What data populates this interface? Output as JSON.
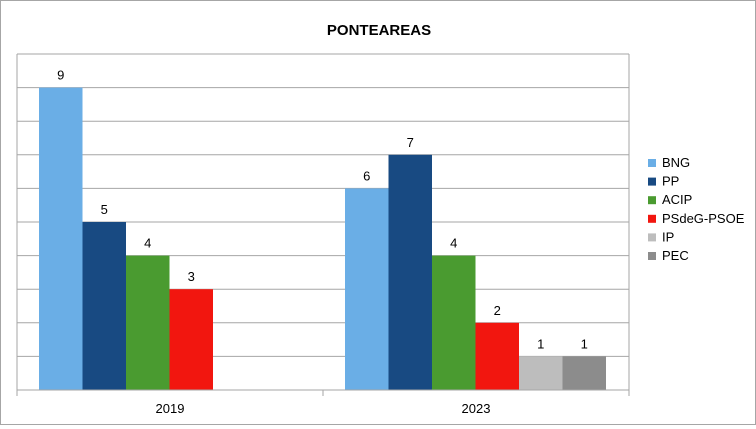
{
  "chart_data": {
    "type": "bar",
    "title": "PONTEAREAS",
    "categories": [
      "2019",
      "2023"
    ],
    "series": [
      {
        "name": "BNG",
        "color": "#6aaee6",
        "values": [
          9,
          6
        ]
      },
      {
        "name": "PP",
        "color": "#184a82",
        "values": [
          5,
          7
        ]
      },
      {
        "name": "ACIP",
        "color": "#4a9b30",
        "values": [
          4,
          4
        ]
      },
      {
        "name": "PSdeG-PSOE",
        "color": "#f2160f",
        "values": [
          3,
          2
        ]
      },
      {
        "name": "IP",
        "color": "#bdbdbd",
        "values": [
          null,
          1
        ]
      },
      {
        "name": "PEC",
        "color": "#8c8c8c",
        "values": [
          null,
          1
        ]
      }
    ],
    "ylim": [
      0,
      9
    ],
    "grid": true,
    "legend_position": "right",
    "xlabel": "",
    "ylabel": ""
  }
}
